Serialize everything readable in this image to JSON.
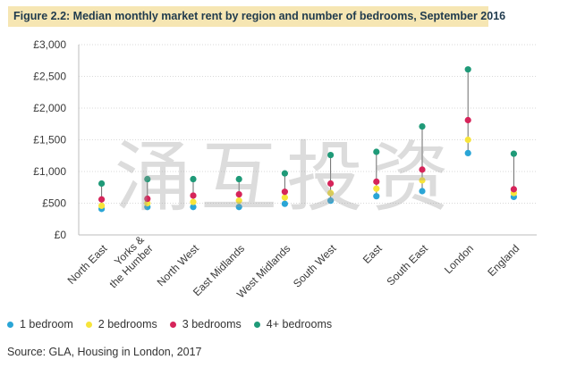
{
  "title": "Figure 2.2: Median monthly market rent by region and number of bedrooms, September 2016",
  "source": "Source: GLA, Housing in London, 2017",
  "watermark_text": "涌互投资",
  "chart_data": {
    "type": "scatter",
    "title": "Figure 2.2: Median monthly market rent by region and number of bedrooms, September 2016",
    "xlabel": "",
    "ylabel": "",
    "ylim": [
      0,
      3000
    ],
    "y_ticks": [
      "£3,000",
      "£2,500",
      "£2,000",
      "£1,500",
      "£1,000",
      "£500",
      "£0"
    ],
    "grid": true,
    "legend_position": "bottom",
    "categories": [
      "North East",
      "Yorks & the Humber",
      "North West",
      "East Midlands",
      "West Midlands",
      "South West",
      "East",
      "South East",
      "London",
      "England"
    ],
    "category_labels": [
      [
        "North East"
      ],
      [
        "Yorks &",
        "the Humber"
      ],
      [
        "North West"
      ],
      [
        "East Midlands"
      ],
      [
        "West Midlands"
      ],
      [
        "South West"
      ],
      [
        "East"
      ],
      [
        "South East"
      ],
      [
        "London"
      ],
      [
        "England"
      ]
    ],
    "series": [
      {
        "name": "1 bedroom",
        "color": "#2aa5d6",
        "values": [
          410,
          440,
          440,
          440,
          490,
          540,
          610,
          690,
          1290,
          600
        ]
      },
      {
        "name": "2 bedrooms",
        "color": "#f7e43a",
        "values": [
          460,
          500,
          520,
          540,
          590,
          660,
          730,
          860,
          1500,
          660
        ]
      },
      {
        "name": "3 bedrooms",
        "color": "#d6245a",
        "values": [
          560,
          570,
          620,
          640,
          680,
          810,
          840,
          1030,
          1810,
          720
        ]
      },
      {
        "name": "4+ bedrooms",
        "color": "#1f9a78",
        "values": [
          810,
          880,
          880,
          880,
          970,
          1260,
          1310,
          1710,
          2610,
          1280
        ]
      }
    ],
    "range_line_color": "#6b6b6b",
    "axis_color": "#bdbdbd",
    "grid_color": "#d9d9d9"
  }
}
